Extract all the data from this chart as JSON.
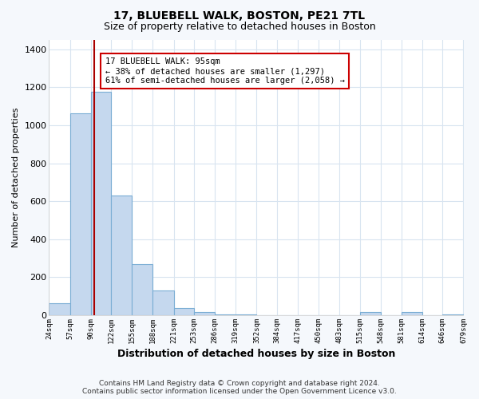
{
  "title": "17, BLUEBELL WALK, BOSTON, PE21 7TL",
  "subtitle": "Size of property relative to detached houses in Boston",
  "xlabel": "Distribution of detached houses by size in Boston",
  "ylabel": "Number of detached properties",
  "bar_color": "#c5d8ee",
  "bar_edge_color": "#7aadd4",
  "property_size": 95,
  "annotation_line1": "17 BLUEBELL WALK: 95sqm",
  "annotation_line2": "← 38% of detached houses are smaller (1,297)",
  "annotation_line3": "61% of semi-detached houses are larger (2,058) →",
  "annotation_box_color": "#cc0000",
  "vline_color": "#aa0000",
  "footer_text": "Contains HM Land Registry data © Crown copyright and database right 2024.\nContains public sector information licensed under the Open Government Licence v3.0.",
  "bin_edges": [
    24,
    57,
    90,
    122,
    155,
    188,
    221,
    253,
    286,
    319,
    352,
    384,
    417,
    450,
    483,
    515,
    548,
    581,
    614,
    646,
    679
  ],
  "bin_heights": [
    65,
    1065,
    1175,
    630,
    270,
    130,
    40,
    15,
    5,
    3,
    2,
    1,
    0,
    0,
    0,
    15,
    0,
    18,
    2,
    5
  ],
  "ylim": [
    0,
    1450
  ],
  "yticks": [
    0,
    200,
    400,
    600,
    800,
    1000,
    1200,
    1400
  ],
  "plot_bg_color": "#ffffff",
  "fig_bg_color": "#f5f8fc",
  "grid_color": "#d8e4f0",
  "title_fontsize": 10,
  "subtitle_fontsize": 9
}
